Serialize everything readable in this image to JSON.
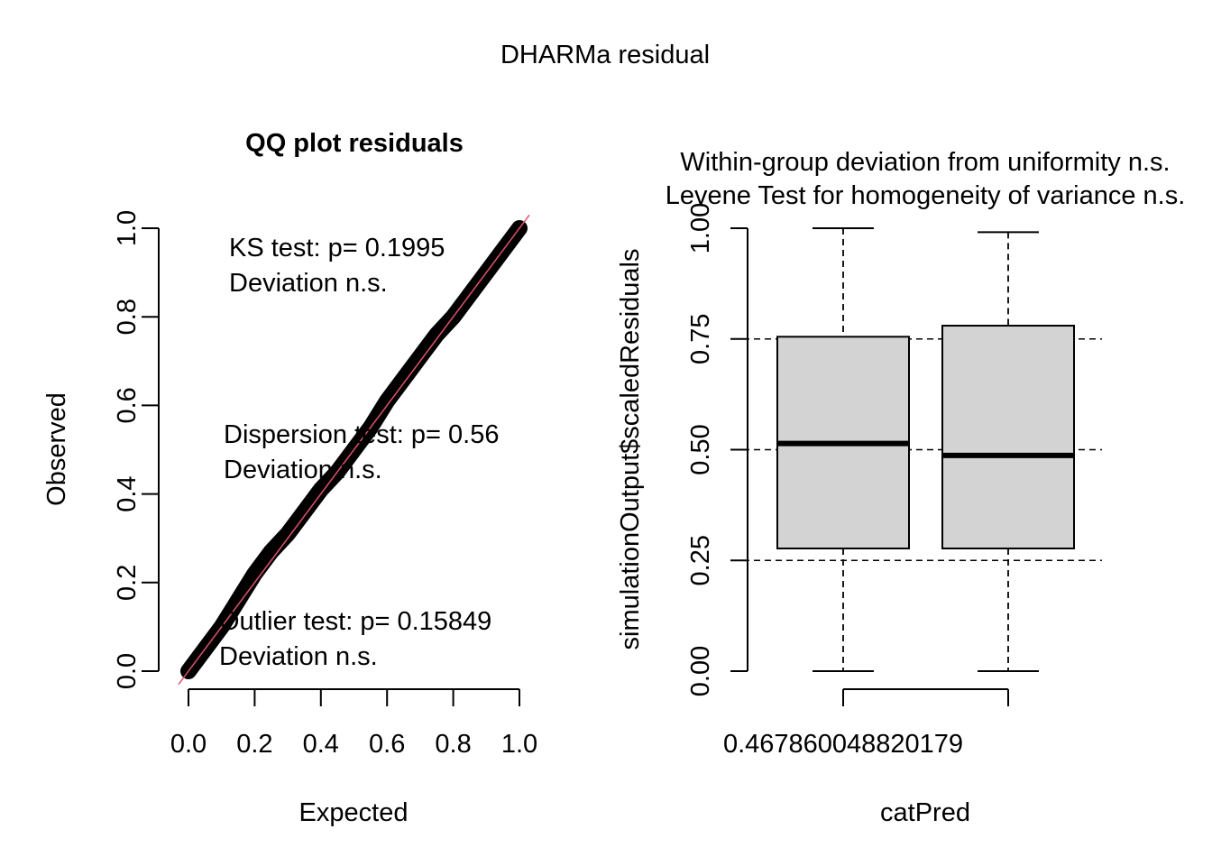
{
  "figure_title": "DHARMa residual",
  "chart_data": [
    {
      "type": "scatter",
      "title": "QQ plot residuals",
      "xlabel": "Expected",
      "ylabel": "Observed",
      "xlim": [
        0,
        1
      ],
      "ylim": [
        0,
        1
      ],
      "xticks": [
        "0.0",
        "0.2",
        "0.4",
        "0.6",
        "0.8",
        "1.0"
      ],
      "yticks": [
        "0.0",
        "0.2",
        "0.4",
        "0.6",
        "0.8",
        "1.0"
      ],
      "reference_line": {
        "slope": 1,
        "intercept": 0,
        "color": "#DF536B"
      },
      "point_color": "#000000",
      "series": [
        {
          "x": [
            0.0,
            0.05,
            0.1,
            0.15,
            0.2,
            0.25,
            0.3,
            0.35,
            0.4,
            0.45,
            0.5,
            0.55,
            0.6,
            0.65,
            0.7,
            0.75,
            0.8,
            0.85,
            0.9,
            0.95,
            1.0
          ],
          "y": [
            0.0,
            0.05,
            0.1,
            0.16,
            0.22,
            0.27,
            0.31,
            0.36,
            0.41,
            0.45,
            0.5,
            0.55,
            0.61,
            0.66,
            0.71,
            0.76,
            0.8,
            0.85,
            0.9,
            0.95,
            1.0
          ]
        }
      ],
      "annotations": [
        {
          "lines": [
            "KS test: p= 0.1995",
            "Deviation  n.s."
          ]
        },
        {
          "lines": [
            "Dispersion test: p= 0.56",
            "Deviation  n.s."
          ]
        },
        {
          "lines": [
            "Outlier test: p= 0.15849",
            "Deviation  n.s."
          ]
        }
      ]
    },
    {
      "type": "box",
      "title_lines": [
        "Within-group deviation from uniformity n.s.",
        "Levene Test for homogeneity of variance n.s."
      ],
      "xlabel": "catPred",
      "ylabel": "simulationOutput$scaledResiduals",
      "ylim": [
        0,
        1
      ],
      "yticks": [
        "0.00",
        "0.25",
        "0.50",
        "0.75",
        "1.00"
      ],
      "x_tick_label": "0.467860048820179",
      "reference_lines": [
        0.25,
        0.5,
        0.75
      ],
      "box_fill": "#D3D3D3",
      "groups": [
        {
          "min": 0.0,
          "q1": 0.277,
          "median": 0.514,
          "q3": 0.755,
          "max": 1.0
        },
        {
          "min": 0.0,
          "q1": 0.277,
          "median": 0.487,
          "q3": 0.78,
          "max": 0.991
        }
      ]
    }
  ]
}
